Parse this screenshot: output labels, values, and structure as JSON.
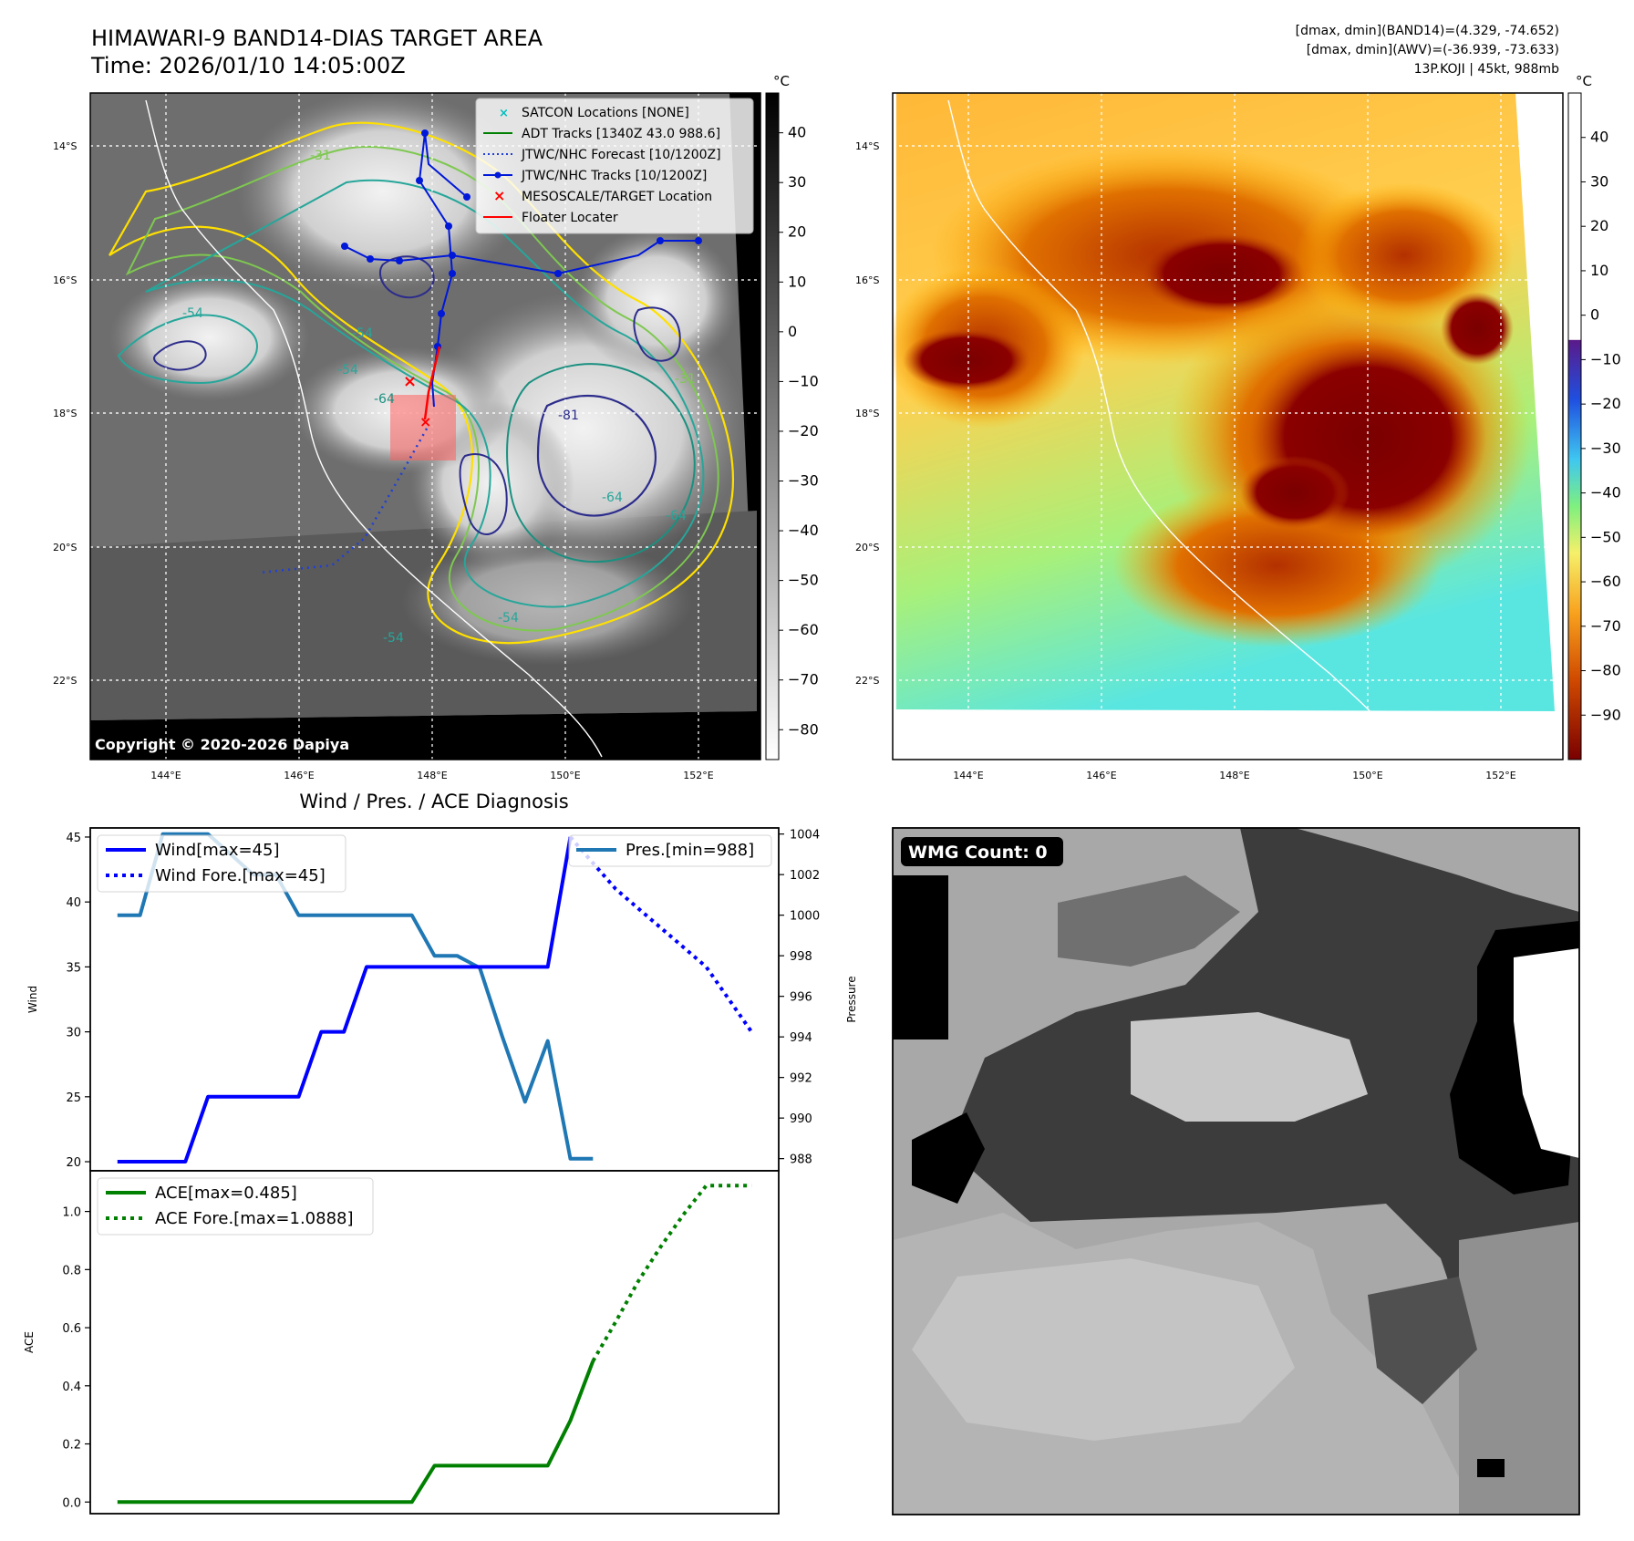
{
  "colors": {
    "wind": "#0000ff",
    "pressure": "#1f77b4",
    "ace": "#008000",
    "jtwc_track": "#0000dd",
    "floater": "#ff0000",
    "satcon": "#00bfbf",
    "adt": "#008000"
  },
  "top_left": {
    "title_line1": "HIMAWARI-9 BAND14-DIAS TARGET AREA",
    "title_line2": "Time: 2026/01/10 14:05:00Z",
    "copyright": "Copyright © 2020-2026 Dapiya",
    "colorbar_unit": "°C",
    "colorbar_ticks": [
      "40",
      "30",
      "20",
      "10",
      "0",
      "−10",
      "−20",
      "−30",
      "−40",
      "−50",
      "−60",
      "−70",
      "−80"
    ],
    "lat_labels": [
      "14°S",
      "16°S",
      "18°S",
      "20°S",
      "22°S"
    ],
    "lon_labels": [
      "144°E",
      "146°E",
      "148°E",
      "150°E",
      "152°E"
    ],
    "contour_labels": [
      "-54",
      "-64",
      "-54",
      "-54",
      "-64",
      "-54",
      "-31",
      "-81",
      "-64",
      "-54",
      "-31"
    ],
    "legend": [
      {
        "label": "SATCON Locations [NONE]",
        "icon": "x-marker-cyan"
      },
      {
        "label": "ADT Tracks [1340Z 43.0 988.6]",
        "icon": "solid-line-green"
      },
      {
        "label": "JTWC/NHC Forecast [10/1200Z]",
        "icon": "dotted-line-blue"
      },
      {
        "label": "JTWC/NHC Tracks [10/1200Z]",
        "icon": "line-dot-blue"
      },
      {
        "label": "MESOSCALE/TARGET Location",
        "icon": "x-marker-red"
      },
      {
        "label": "Floater Locater",
        "icon": "solid-line-red"
      }
    ]
  },
  "top_right": {
    "info_line1": "[dmax, dmin](BAND14)=(4.329, -74.652)",
    "info_line2": "[dmax, dmin](AWV)=(-36.939, -73.633)",
    "info_line3": "13P.KOJI | 45kt, 988mb",
    "colorbar_unit": "°C",
    "colorbar_ticks": [
      "40",
      "30",
      "20",
      "10",
      "0",
      "−10",
      "−20",
      "−30",
      "−40",
      "−50",
      "−60",
      "−70",
      "−80",
      "−90"
    ],
    "lat_labels": [
      "14°S",
      "16°S",
      "18°S",
      "20°S",
      "22°S"
    ],
    "lon_labels": [
      "144°E",
      "146°E",
      "148°E",
      "150°E",
      "152°E"
    ]
  },
  "wmg_panel": {
    "badge": "WMG Count: 0"
  },
  "chart_data": [
    {
      "type": "line",
      "title": "Wind / Pres. / ACE Diagnosis",
      "ylabel": "Wind",
      "ylim": [
        19.3,
        45.7
      ],
      "yticks": [
        "20",
        "25",
        "30",
        "35",
        "40",
        "45"
      ],
      "series": [
        {
          "name": "Wind[max=45]",
          "x": [
            0,
            1,
            2,
            3,
            4,
            5,
            6,
            7,
            8,
            9,
            10,
            11,
            12,
            13,
            14,
            15,
            16,
            17,
            18,
            19,
            20
          ],
          "values": [
            20,
            20,
            20,
            20,
            25,
            25,
            25,
            25,
            25,
            30,
            30,
            35,
            35,
            35,
            35,
            35,
            35,
            35,
            35,
            35,
            45
          ]
        },
        {
          "name": "Wind Fore.[max=45]",
          "style": "dotted",
          "x": [
            20,
            21,
            22,
            23,
            24,
            25,
            26,
            27,
            28
          ],
          "values": [
            45,
            43,
            41,
            39.5,
            38,
            36.5,
            35,
            32.5,
            30
          ]
        }
      ],
      "xlim": [
        -1.2,
        29.2
      ]
    },
    {
      "type": "line",
      "ylabel": "Pressure",
      "ylim": [
        987.4,
        1004.3
      ],
      "yticks": [
        "988",
        "990",
        "992",
        "994",
        "996",
        "998",
        "1000",
        "1002",
        "1004"
      ],
      "series": [
        {
          "name": "Pres.[min=988]",
          "x": [
            0,
            1,
            2,
            3,
            4,
            5,
            6,
            7,
            8,
            9,
            10,
            11,
            12,
            13,
            14,
            15,
            16,
            17,
            18,
            19,
            20,
            21
          ],
          "values": [
            1000,
            1000,
            1004,
            1004,
            1004,
            1003,
            1002,
            1002,
            1000,
            1000,
            1000,
            1000,
            1000,
            1000,
            998,
            998,
            997.4,
            994,
            990.8,
            993.8,
            988,
            988
          ]
        }
      ],
      "xlim": [
        -1.2,
        29.2
      ]
    },
    {
      "type": "line",
      "ylabel": "ACE",
      "ylim": [
        -0.04,
        1.14
      ],
      "yticks": [
        "0.0",
        "0.2",
        "0.4",
        "0.6",
        "0.8",
        "1.0"
      ],
      "series": [
        {
          "name": "ACE[max=0.485]",
          "x": [
            0,
            1,
            2,
            3,
            4,
            5,
            6,
            7,
            8,
            9,
            10,
            11,
            12,
            13,
            14,
            15,
            16,
            17,
            18,
            19,
            20,
            21
          ],
          "values": [
            0,
            0,
            0,
            0,
            0,
            0,
            0,
            0,
            0,
            0,
            0,
            0,
            0,
            0,
            0.125,
            0.125,
            0.125,
            0.125,
            0.125,
            0.125,
            0.28,
            0.485
          ]
        },
        {
          "name": "ACE Fore.[max=1.0888]",
          "style": "dotted",
          "x": [
            21,
            22,
            23,
            24,
            25,
            26,
            27,
            28
          ],
          "values": [
            0.485,
            0.62,
            0.76,
            0.88,
            0.99,
            1.0888,
            1.0888,
            1.0888
          ]
        }
      ],
      "xlim": [
        -1.2,
        29.2
      ]
    }
  ]
}
